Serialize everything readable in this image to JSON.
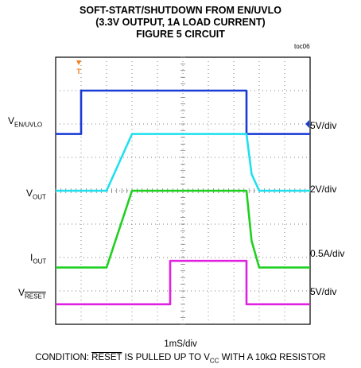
{
  "title": {
    "line1": "SOFT-START/SHUTDOWN FROM EN/UVLO",
    "line2": "(3.3V OUTPUT, 1A LOAD CURRENT)",
    "line3": "FIGURE 5 CIRCUIT"
  },
  "toc_label": "toc06",
  "trigger_marker_label": "T",
  "channels": [
    {
      "name_main": "V",
      "name_sub": "EN/UVLO",
      "scale": "5V/div",
      "color": "#1a3cd6"
    },
    {
      "name_main": "V",
      "name_sub": "OUT",
      "scale": "2V/div",
      "color": "#20e0f0"
    },
    {
      "name_main": "I",
      "name_sub": "OUT",
      "scale": "0.5A/div",
      "color": "#1fd020"
    },
    {
      "name_main": "V",
      "name_sub": "RESET",
      "scale": "5V/div",
      "color": "#e020e0"
    }
  ],
  "time_scale": "1mS/div",
  "condition": {
    "pre": "CONDITION: ",
    "reset": "RESET",
    "mid": " IS PULLED UP TO V",
    "vcc_sub": "CC",
    "post": " WITH A 10kΩ RESISTOR"
  },
  "chart_data": {
    "type": "line",
    "x_unit": "div",
    "y_unit": "div",
    "xlim": [
      0,
      10
    ],
    "ylim": [
      0,
      8
    ],
    "grid": true,
    "series": [
      {
        "name": "EN/UVLO",
        "color": "#1a3cd6",
        "x": [
          0,
          1.0,
          1.0,
          7.5,
          7.5,
          10
        ],
        "y": [
          5.7,
          5.7,
          7.0,
          7.0,
          5.7,
          5.7
        ]
      },
      {
        "name": "OUT",
        "color": "#20e0f0",
        "x": [
          0,
          2.0,
          3.0,
          7.5,
          7.7,
          8.0,
          10
        ],
        "y": [
          4.0,
          4.0,
          5.7,
          5.7,
          4.5,
          4.0,
          4.0
        ]
      },
      {
        "name": "IOUT",
        "color": "#1fd020",
        "x": [
          0,
          2.0,
          3.0,
          7.5,
          7.7,
          8.0,
          10
        ],
        "y": [
          1.7,
          1.7,
          4.0,
          4.0,
          2.5,
          1.7,
          1.7
        ]
      },
      {
        "name": "RESET",
        "color": "#e020e0",
        "x": [
          0,
          4.5,
          4.5,
          7.5,
          7.5,
          10
        ],
        "y": [
          0.6,
          0.6,
          1.9,
          1.9,
          0.6,
          0.6
        ]
      }
    ]
  }
}
